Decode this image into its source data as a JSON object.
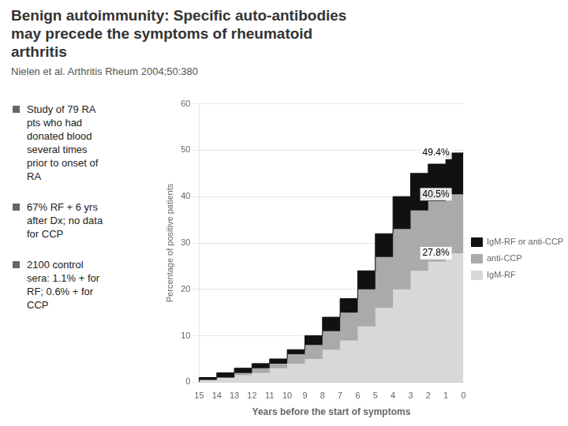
{
  "chart_data": {
    "type": "area",
    "title": "Benign autoimmunity: Specific auto-antibodies\nmay precede the symptoms of rheumatoid\narthritis",
    "subtitle": "Nielen et al. Arthritis Rheum 2004;50:380",
    "bullets": [
      "Study of 79 RA\npts who had\ndonated blood\nseveral times\nprior to onset of\nRA",
      "67% RF + 6 yrs\nafter Dx; no data\nfor CCP",
      "2100 control\nsera: 1.1% + for\nRF; 0.6% + for\nCCP"
    ],
    "categories": [
      15,
      14,
      13,
      12,
      11,
      10,
      9,
      8,
      7,
      6,
      5,
      4,
      3,
      2,
      1,
      0
    ],
    "series": [
      {
        "name": "IgM-RF or anti-CCP",
        "color": "#111111",
        "values": [
          0,
          1,
          2,
          3,
          4,
          5,
          7,
          10,
          14,
          18,
          24,
          32,
          40,
          45,
          47,
          49.4
        ]
      },
      {
        "name": "anti-CCP",
        "color": "#aaaaaa",
        "values": [
          0,
          0.5,
          1,
          2,
          3,
          4,
          6,
          8,
          11,
          15,
          20,
          27,
          33,
          37,
          39,
          40.5
        ]
      },
      {
        "name": "IgM-RF",
        "color": "#d8d8d8",
        "values": [
          0,
          0.5,
          1,
          1.5,
          2,
          3,
          4,
          5,
          7,
          9,
          12,
          16,
          20,
          24,
          26,
          27.8
        ]
      }
    ],
    "line_style": "steps-post",
    "stacked": false,
    "xlabel": "Years before the start of symptoms",
    "ylabel": "Percentage of positive patients",
    "ylim": [
      0,
      60
    ],
    "yticks": [
      0,
      10,
      20,
      30,
      40,
      50,
      60
    ],
    "grid": true,
    "legend": "right",
    "annotations": [
      {
        "text": "49.4%",
        "y": 49.4
      },
      {
        "text": "40.5%",
        "y": 40.5
      },
      {
        "text": "27.8%",
        "y": 27.8
      }
    ]
  }
}
